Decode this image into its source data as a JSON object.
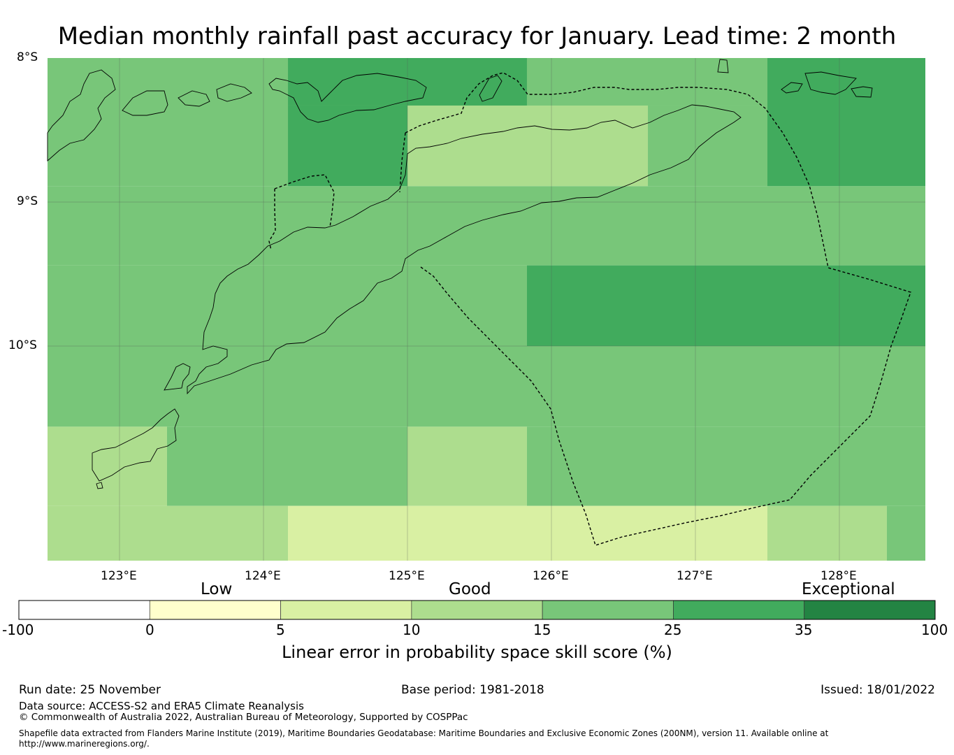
{
  "title": "Median monthly rainfall past accuracy for January. Lead time: 2 month",
  "map": {
    "lat_labels": [
      "8°S",
      "9°S",
      "10°S"
    ],
    "lon_labels": [
      "123°E",
      "124°E",
      "125°E",
      "126°E",
      "127°E",
      "128°E"
    ],
    "extent": {
      "lon_min": 122.5,
      "lon_max": 128.6,
      "lat_north": -8.0,
      "lat_south": -11.5
    },
    "cells": [
      {
        "lon": [
          122.5,
          124.17
        ],
        "lat": [
          -8.0,
          -8.89
        ],
        "bin": 4
      },
      {
        "lon": [
          124.17,
          125.83
        ],
        "lat": [
          -8.0,
          -8.33
        ],
        "bin": 5
      },
      {
        "lon": [
          124.17,
          125.0
        ],
        "lat": [
          -8.33,
          -8.89
        ],
        "bin": 5
      },
      {
        "lon": [
          125.0,
          126.67
        ],
        "lat": [
          -8.33,
          -8.89
        ],
        "bin": 3
      },
      {
        "lon": [
          125.83,
          127.5
        ],
        "lat": [
          -8.0,
          -8.33
        ],
        "bin": 4
      },
      {
        "lon": [
          126.67,
          127.5
        ],
        "lat": [
          -8.33,
          -8.89
        ],
        "bin": 4
      },
      {
        "lon": [
          127.5,
          128.6
        ],
        "lat": [
          -8.0,
          -8.89
        ],
        "bin": 5
      },
      {
        "lon": [
          122.5,
          128.6
        ],
        "lat": [
          -8.89,
          -9.44
        ],
        "bin": 4
      },
      {
        "lon": [
          122.5,
          125.83
        ],
        "lat": [
          -9.44,
          -10.0
        ],
        "bin": 4
      },
      {
        "lon": [
          125.83,
          128.6
        ],
        "lat": [
          -9.44,
          -10.0
        ],
        "bin": 5
      },
      {
        "lon": [
          122.5,
          128.6
        ],
        "lat": [
          -10.0,
          -10.56
        ],
        "bin": 4
      },
      {
        "lon": [
          122.5,
          123.33
        ],
        "lat": [
          -10.56,
          -11.11
        ],
        "bin": 3
      },
      {
        "lon": [
          123.33,
          125.0
        ],
        "lat": [
          -10.56,
          -11.11
        ],
        "bin": 4
      },
      {
        "lon": [
          125.0,
          125.83
        ],
        "lat": [
          -10.56,
          -11.11
        ],
        "bin": 3
      },
      {
        "lon": [
          125.83,
          128.6
        ],
        "lat": [
          -10.56,
          -11.11
        ],
        "bin": 4
      },
      {
        "lon": [
          122.5,
          124.17
        ],
        "lat": [
          -11.11,
          -11.5
        ],
        "bin": 3
      },
      {
        "lon": [
          124.17,
          127.5
        ],
        "lat": [
          -11.11,
          -11.5
        ],
        "bin": 2
      },
      {
        "lon": [
          127.5,
          128.33
        ],
        "lat": [
          -11.11,
          -11.5
        ],
        "bin": 3
      },
      {
        "lon": [
          128.33,
          128.6
        ],
        "lat": [
          -11.11,
          -11.5
        ],
        "bin": 4
      }
    ]
  },
  "colorbar": {
    "categories": [
      "Low",
      "Good",
      "Exceptional"
    ],
    "ticks": [
      "-100",
      "0",
      "5",
      "10",
      "15",
      "25",
      "35",
      "100"
    ],
    "colors": [
      "#ffffff",
      "#ffffcc",
      "#d9f0a3",
      "#addd8e",
      "#78c679",
      "#41ab5d",
      "#238443"
    ],
    "label": "Linear error in probability space skill score (%)"
  },
  "footer": {
    "run_date": "Run date: 25 November",
    "base_period": "Base period: 1981-2018",
    "issued": "Issued: 18/01/2022",
    "data_source": "Data source: ACCESS-S2 and ERA5 Climate Reanalysis",
    "copyright": "© Commonwealth of Australia 2022, Australian Bureau of Meteorology, Supported by COSPPac",
    "shapefile_line1": "Shapefile data extracted from Flanders Marine Institute (2019), Maritime Boundaries Geodatabase: Maritime Boundaries and Exclusive Economic Zones (200NM), version 11. Available online at",
    "shapefile_line2": "http://www.marineregions.org/."
  }
}
